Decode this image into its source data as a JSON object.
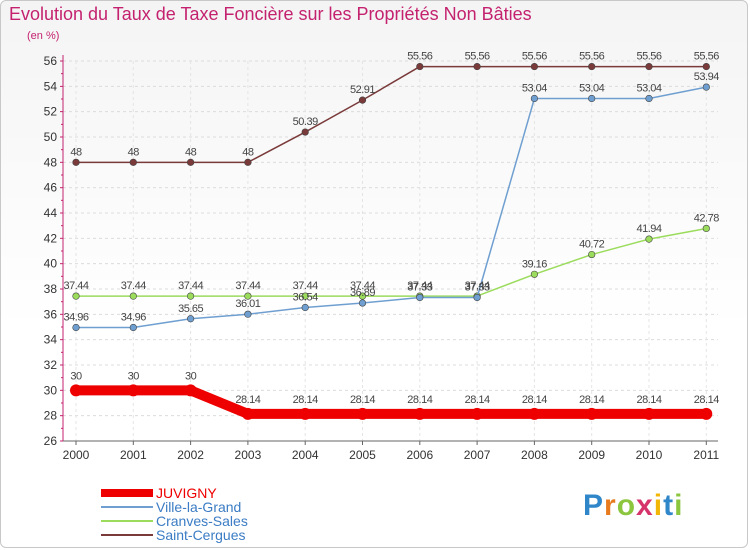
{
  "chart_data": {
    "type": "line",
    "title": "Evolution du Taux de Taxe Foncière sur les Propriétés Non Bâties",
    "ylabel": "(en %)",
    "xlabel": "",
    "ylim": [
      26,
      56
    ],
    "yticks": [
      "26",
      "28",
      "30",
      "32",
      "34",
      "36",
      "38",
      "40",
      "42",
      "44",
      "46",
      "48",
      "50",
      "52",
      "54",
      "56"
    ],
    "categories": [
      "2000",
      "2001",
      "2002",
      "2003",
      "2004",
      "2005",
      "2006",
      "2007",
      "2008",
      "2009",
      "2010",
      "2011"
    ],
    "series": [
      {
        "name": "JUVIGNY",
        "color": "#ee0000",
        "values": [
          30,
          30,
          30,
          28.14,
          28.14,
          28.14,
          28.14,
          28.14,
          28.14,
          28.14,
          28.14,
          28.14
        ],
        "labels": [
          "30",
          "30",
          "30",
          "28.14",
          "28.14",
          "28.14",
          "28.14",
          "28.14",
          "28.14",
          "28.14",
          "28.14",
          "28.14"
        ]
      },
      {
        "name": "Ville-la-Grand",
        "color": "#6f9fd0",
        "values": [
          34.96,
          34.96,
          35.65,
          36.01,
          36.54,
          36.89,
          37.33,
          37.33,
          53.04,
          53.04,
          53.04,
          53.94
        ],
        "labels": [
          "34.96",
          "34.96",
          "35.65",
          "36.01",
          "36.54",
          "36.89",
          "37.33",
          "37.33",
          "53.04",
          "53.04",
          "53.04",
          "53.94"
        ]
      },
      {
        "name": "Cranves-Sales",
        "color": "#9bdc5c",
        "values": [
          37.44,
          37.44,
          37.44,
          37.44,
          37.44,
          37.44,
          37.44,
          37.44,
          39.16,
          40.72,
          41.94,
          42.78
        ],
        "labels": [
          "37.44",
          "37.44",
          "37.44",
          "37.44",
          "37.44",
          "37.44",
          "37.44",
          "37.44",
          "39.16",
          "40.72",
          "41.94",
          "42.78"
        ]
      },
      {
        "name": "Saint-Cergues",
        "color": "#7a3a3a",
        "values": [
          48,
          48,
          48,
          48,
          50.39,
          52.91,
          55.56,
          55.56,
          55.56,
          55.56,
          55.56,
          55.56
        ],
        "labels": [
          "48",
          "48",
          "48",
          "48",
          "50.39",
          "52.91",
          "55.56",
          "55.56",
          "55.56",
          "55.56",
          "55.56",
          "55.56"
        ]
      }
    ],
    "grid": true,
    "legend_position": "bottom-left"
  },
  "logo_text": [
    "P",
    "r",
    "o",
    "x",
    "i",
    "t",
    "i"
  ]
}
